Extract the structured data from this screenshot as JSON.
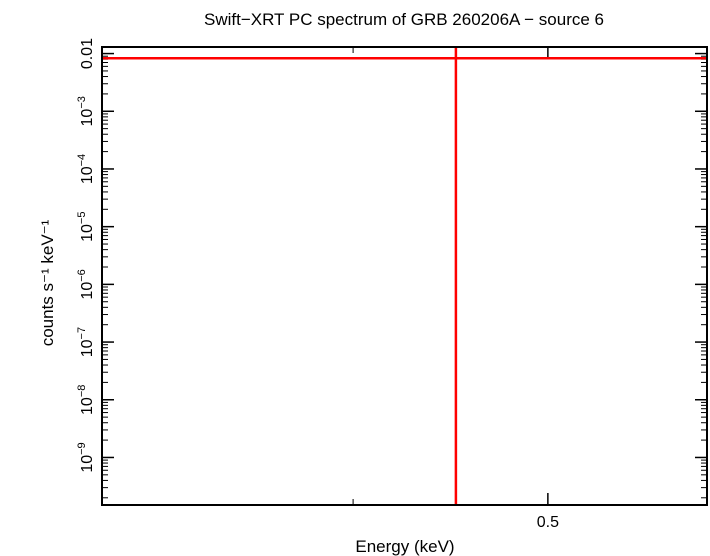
{
  "chart_data": {
    "type": "scatter",
    "title": "Swift−XRT PC spectrum of GRB 260206A − source 6",
    "xlabel": "Energy (keV)",
    "ylabel": "counts s⁻¹ keV⁻¹",
    "x_scale": "log",
    "y_scale": "log",
    "xlim": [
      0.3,
      0.6
    ],
    "ylim": [
      1.5e-10,
      0.013
    ],
    "x_tick_labels": [
      {
        "value": 0.5,
        "label": "0.5"
      }
    ],
    "x_minor_ticks": [
      0.4,
      0.6
    ],
    "y_tick_labels": [
      {
        "value": 0.01,
        "base": "0.01",
        "exp": ""
      },
      {
        "value": 0.001,
        "base": "10",
        "exp": "−3"
      },
      {
        "value": 0.0001,
        "base": "10",
        "exp": "−4"
      },
      {
        "value": 1e-05,
        "base": "10",
        "exp": "−5"
      },
      {
        "value": 1e-06,
        "base": "10",
        "exp": "−6"
      },
      {
        "value": 1e-07,
        "base": "10",
        "exp": "−7"
      },
      {
        "value": 1e-08,
        "base": "10",
        "exp": "−8"
      },
      {
        "value": 1e-09,
        "base": "10",
        "exp": "−9"
      }
    ],
    "grid": false,
    "series": [
      {
        "points": [
          {
            "x": 0.45,
            "y": 0.0083,
            "x_range": [
              0.3,
              0.6
            ],
            "y_range": [
              1.5e-10,
              0.013
            ]
          }
        ],
        "color": "#ff0000"
      }
    ]
  }
}
